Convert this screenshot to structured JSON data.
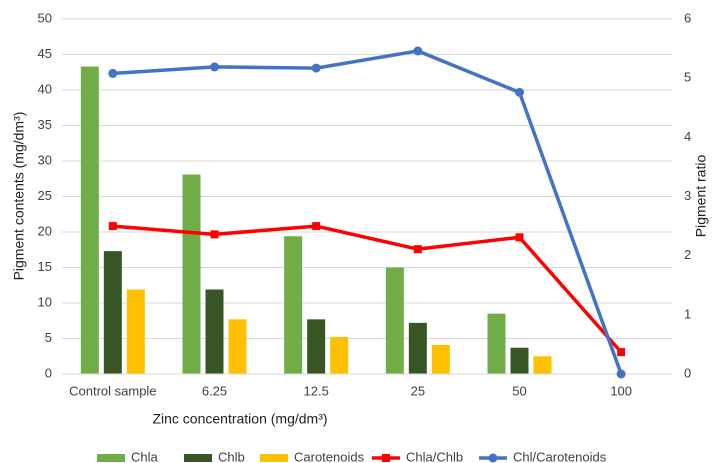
{
  "chart_data": {
    "type": "bar",
    "categories": [
      "Control sample",
      "6.25",
      "12.5",
      "25",
      "50",
      "100"
    ],
    "x_label": "Zinc concentration (mg/dm³)",
    "y_label": "Pigment contents (mg/dm³)",
    "y2_label": "Pigment ratio",
    "ylim": [
      0,
      50
    ],
    "yticks": [
      0,
      5,
      10,
      15,
      20,
      25,
      30,
      35,
      40,
      45,
      50
    ],
    "y2lim": [
      0,
      6
    ],
    "y2ticks": [
      0,
      1,
      2,
      3,
      4,
      5,
      6
    ],
    "grid": true,
    "legend": "bottom",
    "series": [
      {
        "name": "Chla",
        "color": "#70ad47",
        "values": [
          43.3,
          28.1,
          19.4,
          15.0,
          8.5,
          0
        ]
      },
      {
        "name": "Chlb",
        "color": "#375623",
        "values": [
          17.3,
          11.9,
          7.7,
          7.2,
          3.7,
          0
        ]
      },
      {
        "name": "Carotenoids",
        "color": "#ffc000",
        "values": [
          11.9,
          7.7,
          5.2,
          4.1,
          2.5,
          0
        ]
      },
      {
        "name": "Chla/Chlb",
        "color": "#ff0000",
        "type": "line",
        "marker": "square",
        "axis": "y2",
        "values": [
          2.5,
          2.36,
          2.5,
          2.11,
          2.31,
          0.37
        ]
      },
      {
        "name": "Chl/Carotenoids",
        "color": "#4472c4",
        "type": "line",
        "marker": "circle",
        "axis": "y2",
        "values": [
          5.08,
          5.19,
          5.17,
          5.46,
          4.76,
          0
        ]
      }
    ]
  }
}
